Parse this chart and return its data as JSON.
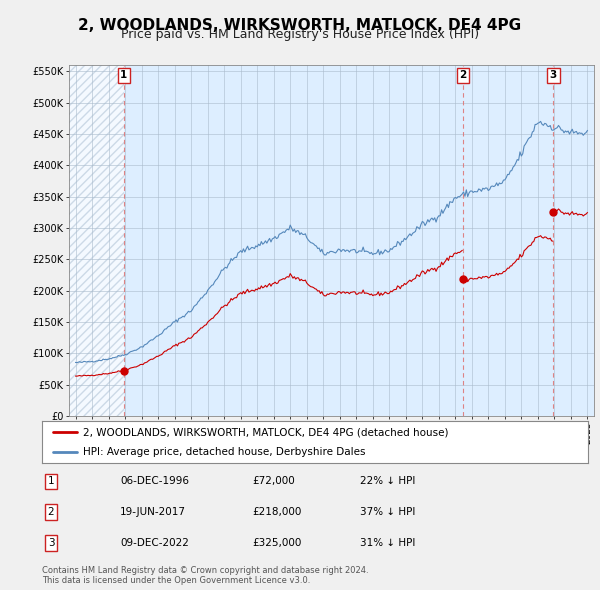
{
  "title": "2, WOODLANDS, WIRKSWORTH, MATLOCK, DE4 4PG",
  "subtitle": "Price paid vs. HM Land Registry's House Price Index (HPI)",
  "title_fontsize": 11,
  "subtitle_fontsize": 9,
  "ylim": [
    0,
    560000
  ],
  "yticks": [
    0,
    50000,
    100000,
    150000,
    200000,
    250000,
    300000,
    350000,
    400000,
    450000,
    500000,
    550000
  ],
  "ytick_labels": [
    "£0",
    "£50K",
    "£100K",
    "£150K",
    "£200K",
    "£250K",
    "£300K",
    "£350K",
    "£400K",
    "£450K",
    "£500K",
    "£550K"
  ],
  "xlim_start": 1993.6,
  "xlim_end": 2025.4,
  "sale_color": "#cc0000",
  "hpi_color": "#5588bb",
  "plot_bg_color": "#ddeeff",
  "pre_sale_hatch_color": "#bbccdd",
  "grid_color": "#aabbcc",
  "dashed_vline_color": "#dd7777",
  "background_color": "#f0f0f0",
  "sales": [
    {
      "year": 1996.92,
      "price": 72000,
      "label": "1"
    },
    {
      "year": 2017.47,
      "price": 218000,
      "label": "2"
    },
    {
      "year": 2022.94,
      "price": 325000,
      "label": "3"
    }
  ],
  "legend_sale_label": "2, WOODLANDS, WIRKSWORTH, MATLOCK, DE4 4PG (detached house)",
  "legend_hpi_label": "HPI: Average price, detached house, Derbyshire Dales",
  "table_rows": [
    {
      "num": "1",
      "date": "06-DEC-1996",
      "price": "£72,000",
      "pct": "22% ↓ HPI"
    },
    {
      "num": "2",
      "date": "19-JUN-2017",
      "price": "£218,000",
      "pct": "37% ↓ HPI"
    },
    {
      "num": "3",
      "date": "09-DEC-2022",
      "price": "£325,000",
      "pct": "31% ↓ HPI"
    }
  ],
  "footnote": "Contains HM Land Registry data © Crown copyright and database right 2024.\nThis data is licensed under the Open Government Licence v3.0."
}
